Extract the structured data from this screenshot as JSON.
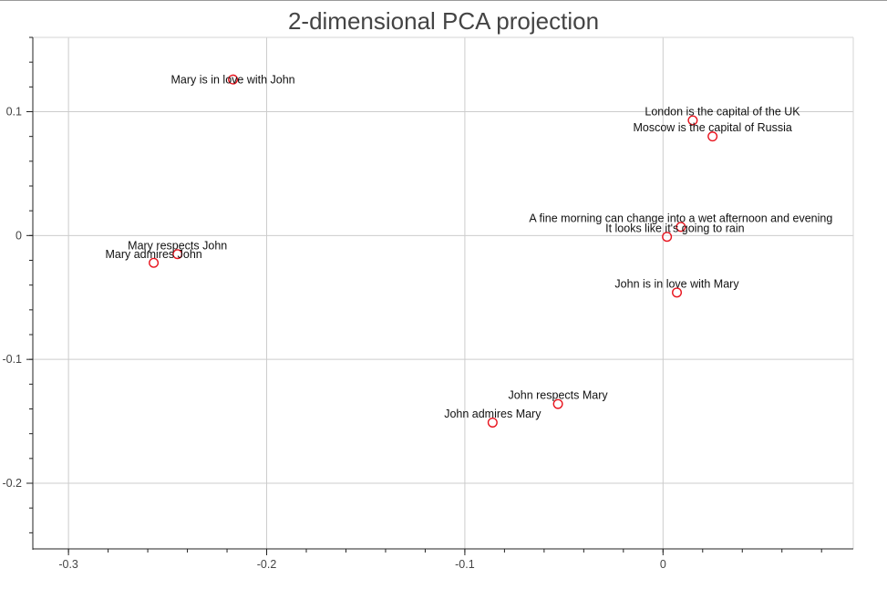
{
  "chart_data": {
    "type": "scatter",
    "title": "2-dimensional PCA projection",
    "xlabel": "",
    "ylabel": "",
    "xlim": [
      -0.318,
      0.096
    ],
    "ylim": [
      -0.253,
      0.16
    ],
    "x_ticks": [
      -0.3,
      -0.2,
      -0.1,
      0
    ],
    "x_tick_labels": [
      "-0.3",
      "-0.2",
      "-0.1",
      "0"
    ],
    "y_ticks": [
      -0.2,
      -0.1,
      0,
      0.1
    ],
    "y_tick_labels": [
      "-0.2",
      "-0.1",
      "0",
      "0.1"
    ],
    "grid": true,
    "marker": "circle-outline",
    "marker_color": "#e8141e",
    "points": [
      {
        "label": "Mary is in love with John",
        "x": -0.217,
        "y": 0.126,
        "label_dx": 0,
        "label_dy": -0.003
      },
      {
        "label": "London is the capital of the UK",
        "x": 0.015,
        "y": 0.093,
        "label_dx": 0.015,
        "label_dy": 0.004
      },
      {
        "label": "Moscow is the capital of Russia",
        "x": 0.025,
        "y": 0.08,
        "label_dx": 0,
        "label_dy": 0.004
      },
      {
        "label": "A fine morning can change into a wet afternoon and evening",
        "x": 0.009,
        "y": 0.007,
        "label_dx": 0,
        "label_dy": 0.004
      },
      {
        "label": "It looks like it's going to rain",
        "x": 0.002,
        "y": -0.001,
        "label_dx": 0.004,
        "label_dy": 0.004
      },
      {
        "label": "John is in love with Mary",
        "x": 0.007,
        "y": -0.046,
        "label_dx": 0,
        "label_dy": 0.004
      },
      {
        "label": "Mary respects John",
        "x": -0.245,
        "y": -0.015,
        "label_dx": 0,
        "label_dy": 0.004
      },
      {
        "label": "Mary admires John",
        "x": -0.257,
        "y": -0.022,
        "label_dx": 0,
        "label_dy": 0.004
      },
      {
        "label": "John respects Mary",
        "x": -0.053,
        "y": -0.136,
        "label_dx": 0,
        "label_dy": 0.004
      },
      {
        "label": "John admires Mary",
        "x": -0.086,
        "y": -0.151,
        "label_dx": 0,
        "label_dy": 0.004
      }
    ]
  }
}
